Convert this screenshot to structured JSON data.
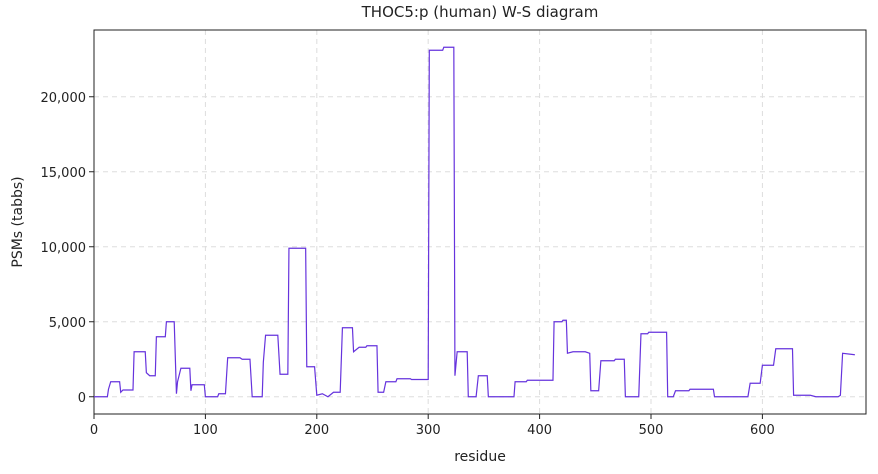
{
  "chart_data": {
    "type": "line",
    "title": "THOC5:p (human) W-S diagram",
    "x_label": "residue",
    "y_label": "PSMs (tabbs)",
    "color": "#6633dd",
    "grid": true,
    "x": [
      0,
      12,
      13,
      15,
      23,
      24,
      26,
      35,
      36,
      46,
      47,
      50,
      55,
      56,
      64,
      65,
      72,
      74,
      75,
      78,
      86,
      87,
      88,
      99,
      100,
      111,
      112,
      118,
      120,
      131,
      133,
      140,
      142,
      151,
      152,
      154,
      165,
      167,
      174,
      175,
      190,
      191,
      198,
      200,
      205,
      210,
      215,
      221,
      223,
      232,
      233,
      238,
      244,
      245,
      254,
      255,
      260,
      262,
      271,
      272,
      284,
      285,
      300,
      301,
      313,
      314,
      323,
      324,
      326,
      335,
      336,
      343,
      345,
      353,
      354,
      377,
      378,
      388,
      389,
      412,
      413,
      420,
      421,
      424,
      425,
      430,
      441,
      445,
      446,
      453,
      455,
      467,
      468,
      476,
      477,
      489,
      491,
      497,
      498,
      514,
      515,
      520,
      522,
      534,
      535,
      556,
      557,
      587,
      589,
      598,
      600,
      610,
      612,
      627,
      628,
      643,
      648,
      668,
      670,
      672,
      683
    ],
    "values": [
      0,
      0,
      500,
      1000,
      1000,
      300,
      450,
      450,
      3000,
      3000,
      1600,
      1400,
      1400,
      4000,
      4000,
      5000,
      5000,
      200,
      1000,
      1900,
      1900,
      400,
      800,
      800,
      0,
      0,
      200,
      200,
      2600,
      2600,
      2500,
      2500,
      0,
      0,
      2300,
      4100,
      4100,
      1500,
      1500,
      9900,
      9900,
      2000,
      2000,
      100,
      200,
      0,
      300,
      300,
      4600,
      4600,
      3000,
      3300,
      3300,
      3400,
      3400,
      300,
      300,
      1000,
      1000,
      1200,
      1200,
      1150,
      1150,
      23100,
      23100,
      23300,
      23300,
      1400,
      3000,
      3000,
      0,
      0,
      1400,
      1400,
      0,
      0,
      1000,
      1000,
      1100,
      1100,
      5000,
      5000,
      5100,
      5100,
      2900,
      3000,
      3000,
      2900,
      400,
      400,
      2400,
      2400,
      2500,
      2500,
      0,
      0,
      4200,
      4200,
      4300,
      4300,
      0,
      0,
      400,
      400,
      500,
      500,
      0,
      0,
      900,
      900,
      2100,
      2100,
      3200,
      3200,
      100,
      100,
      0,
      0,
      100,
      2900,
      2800
    ],
    "xlim": [
      0,
      693
    ],
    "xticks": [
      0,
      100,
      200,
      300,
      400,
      500,
      600
    ],
    "ylim": [
      -1150,
      24450
    ],
    "yticks": [
      0,
      {
        "value": 5000,
        "label": "5,000"
      },
      {
        "value": 10000,
        "label": "10,000"
      },
      {
        "value": 15000,
        "label": "15,000"
      },
      {
        "value": 20000,
        "label": "20,000"
      }
    ]
  }
}
